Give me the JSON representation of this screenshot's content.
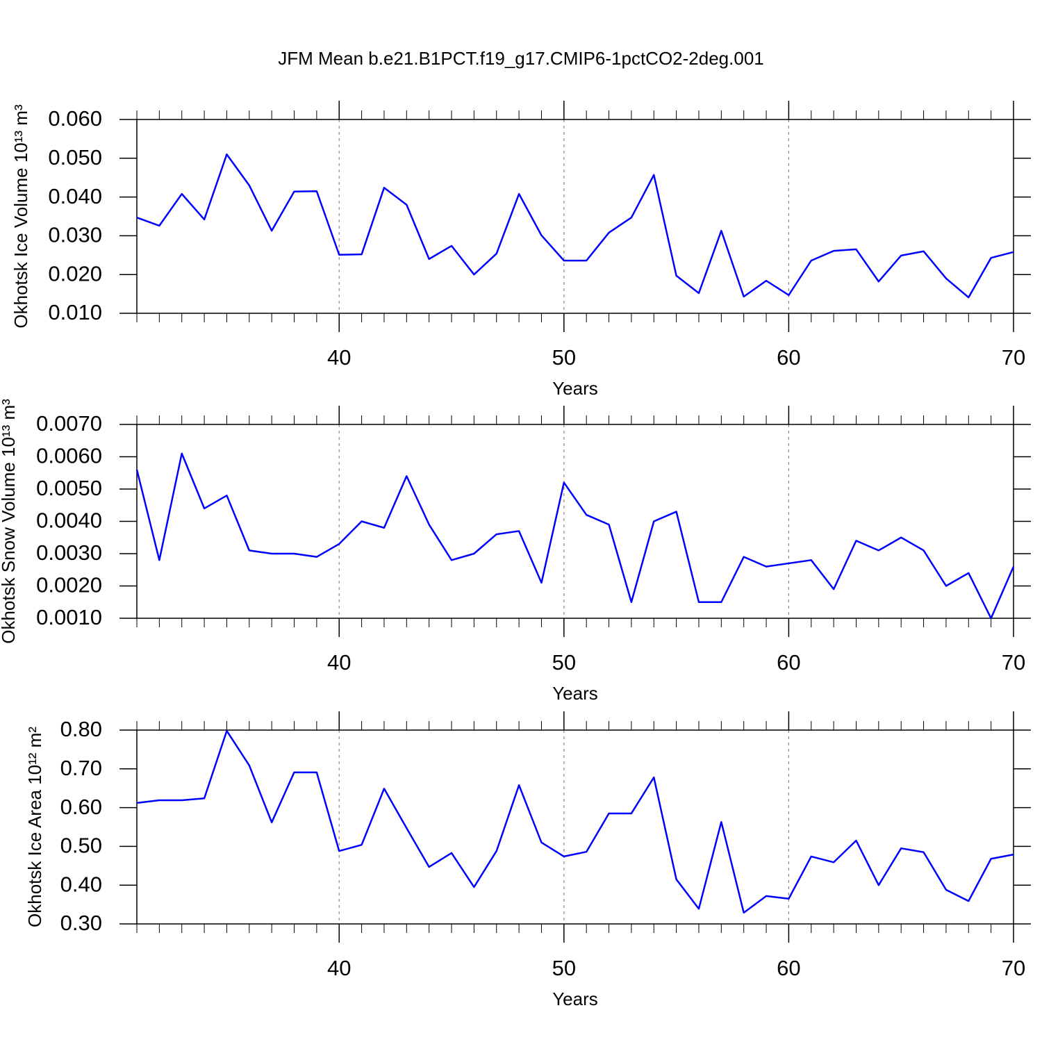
{
  "title": "JFM Mean b.e21.B1PCT.f19_g17.CMIP6-1pctCO2-2deg.001",
  "chart_data": [
    {
      "type": "line",
      "xlabel": "Years",
      "ylabel": "Okhotsk Ice Volume 10¹³ m³",
      "x": [
        31,
        32,
        33,
        34,
        35,
        36,
        37,
        38,
        39,
        40,
        41,
        42,
        43,
        44,
        45,
        46,
        47,
        48,
        49,
        50,
        51,
        52,
        53,
        54,
        55,
        56,
        57,
        58,
        59,
        60,
        61,
        62,
        63,
        64,
        65,
        66,
        67,
        68,
        69,
        70
      ],
      "series": [
        {
          "color": "#0000ff",
          "values": [
            0.0347,
            0.0326,
            0.0408,
            0.0342,
            0.051,
            0.043,
            0.0313,
            0.0414,
            0.0415,
            0.0251,
            0.0252,
            0.0424,
            0.038,
            0.024,
            0.0274,
            0.02,
            0.0254,
            0.0408,
            0.0301,
            0.0236,
            0.0236,
            0.0308,
            0.0347,
            0.0457,
            0.0197,
            0.0152,
            0.0313,
            0.0143,
            0.0184,
            0.0147,
            0.0236,
            0.0261,
            0.0265,
            0.0182,
            0.0249,
            0.026,
            0.019,
            0.0141,
            0.0243,
            0.0258
          ]
        }
      ],
      "xlim": [
        31,
        70
      ],
      "xticks": [
        40,
        50,
        60,
        70
      ],
      "ylim": [
        0.01,
        0.06
      ],
      "yticks": [
        {
          "value": 0.01,
          "label": "0.010"
        },
        {
          "value": 0.02,
          "label": "0.020"
        },
        {
          "value": 0.03,
          "label": "0.030"
        },
        {
          "value": 0.04,
          "label": "0.040"
        },
        {
          "value": 0.05,
          "label": "0.050"
        },
        {
          "value": 0.06,
          "label": "0.060"
        }
      ],
      "grid": "x"
    },
    {
      "type": "line",
      "xlabel": "Years",
      "ylabel": "Okhotsk Snow Volume 10¹³ m³",
      "x": [
        31,
        32,
        33,
        34,
        35,
        36,
        37,
        38,
        39,
        40,
        41,
        42,
        43,
        44,
        45,
        46,
        47,
        48,
        49,
        50,
        51,
        52,
        53,
        54,
        55,
        56,
        57,
        58,
        59,
        60,
        61,
        62,
        63,
        64,
        65,
        66,
        67,
        68,
        69,
        70
      ],
      "series": [
        {
          "color": "#0000ff",
          "values": [
            0.0056,
            0.0028,
            0.0061,
            0.0044,
            0.0048,
            0.0031,
            0.003,
            0.003,
            0.0029,
            0.0033,
            0.004,
            0.0038,
            0.0054,
            0.0039,
            0.0028,
            0.003,
            0.0036,
            0.0037,
            0.0021,
            0.0052,
            0.0042,
            0.0039,
            0.0015,
            0.004,
            0.0043,
            0.0015,
            0.0015,
            0.0029,
            0.0026,
            0.0027,
            0.0028,
            0.0019,
            0.0034,
            0.0031,
            0.0035,
            0.0031,
            0.002,
            0.0024,
            0.001,
            0.0026
          ]
        }
      ],
      "xlim": [
        31,
        70
      ],
      "xticks": [
        40,
        50,
        60,
        70
      ],
      "ylim": [
        0.001,
        0.007
      ],
      "yticks": [
        {
          "value": 0.001,
          "label": "0.0010"
        },
        {
          "value": 0.002,
          "label": "0.0020"
        },
        {
          "value": 0.003,
          "label": "0.0030"
        },
        {
          "value": 0.004,
          "label": "0.0040"
        },
        {
          "value": 0.005,
          "label": "0.0050"
        },
        {
          "value": 0.006,
          "label": "0.0060"
        },
        {
          "value": 0.007,
          "label": "0.0070"
        }
      ],
      "grid": "x"
    },
    {
      "type": "line",
      "xlabel": "Years",
      "ylabel": "Okhotsk Ice Area 10¹² m²",
      "x": [
        31,
        32,
        33,
        34,
        35,
        36,
        37,
        38,
        39,
        40,
        41,
        42,
        43,
        44,
        45,
        46,
        47,
        48,
        49,
        50,
        51,
        52,
        53,
        54,
        55,
        56,
        57,
        58,
        59,
        60,
        61,
        62,
        63,
        64,
        65,
        66,
        67,
        68,
        69,
        70
      ],
      "series": [
        {
          "color": "#0000ff",
          "values": [
            0.612,
            0.619,
            0.619,
            0.624,
            0.798,
            0.709,
            0.562,
            0.691,
            0.691,
            0.488,
            0.504,
            0.649,
            0.547,
            0.447,
            0.483,
            0.395,
            0.488,
            0.658,
            0.51,
            0.474,
            0.486,
            0.585,
            0.585,
            0.678,
            0.415,
            0.339,
            0.563,
            0.329,
            0.372,
            0.365,
            0.474,
            0.459,
            0.515,
            0.4,
            0.495,
            0.485,
            0.388,
            0.359,
            0.468,
            0.479
          ]
        }
      ],
      "xlim": [
        31,
        70
      ],
      "xticks": [
        40,
        50,
        60,
        70
      ],
      "ylim": [
        0.3,
        0.8
      ],
      "yticks": [
        {
          "value": 0.3,
          "label": "0.30"
        },
        {
          "value": 0.4,
          "label": "0.40"
        },
        {
          "value": 0.5,
          "label": "0.50"
        },
        {
          "value": 0.6,
          "label": "0.60"
        },
        {
          "value": 0.7,
          "label": "0.70"
        },
        {
          "value": 0.8,
          "label": "0.80"
        }
      ],
      "grid": "x"
    }
  ]
}
